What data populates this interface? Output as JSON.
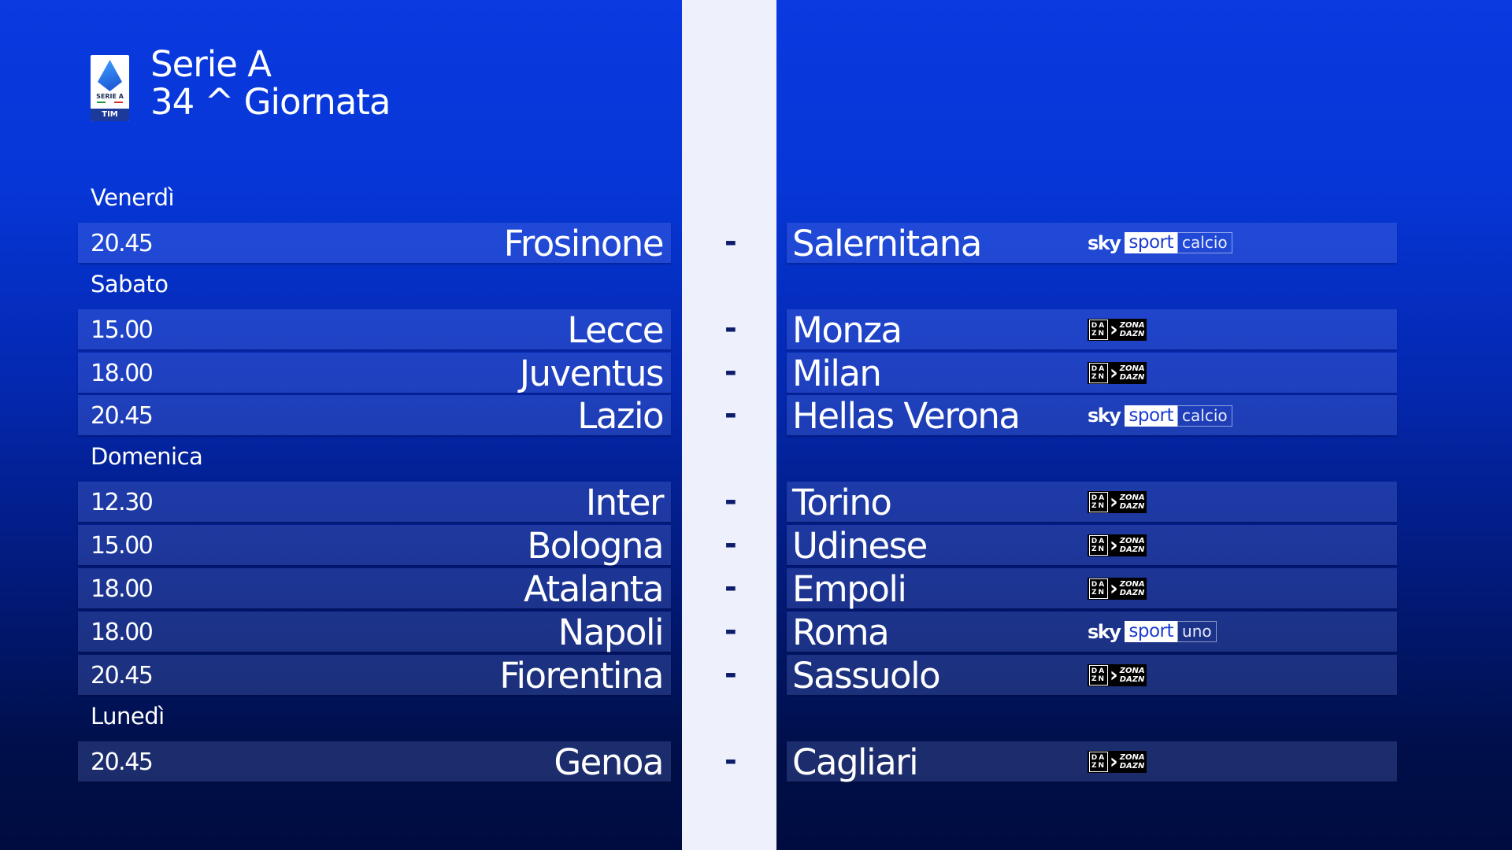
{
  "header": {
    "line1": "Serie A",
    "line2": "34 ^ Giornata",
    "logo_text": "SERIE A",
    "logo_sponsor": "TIM"
  },
  "colors": {
    "background_top": "#0a3ae0",
    "background_bottom": "#000c40",
    "center_strip": "#eef1fb",
    "dash": "#0c1c6a"
  },
  "broadcasters": {
    "sky_calcio": {
      "brand": "sky",
      "sport": "sport",
      "channel": "calcio"
    },
    "sky_uno": {
      "brand": "sky",
      "sport": "sport",
      "channel": "uno"
    },
    "dazn": {
      "box_top": "DA",
      "box_bottom": "ZN",
      "zona1": "ZONA",
      "zona2": "DAZN"
    }
  },
  "schedule": [
    {
      "type": "day",
      "label": "Venerdì"
    },
    {
      "type": "match",
      "time": "20.45",
      "home": "Frosinone",
      "sep": "-",
      "away": "Salernitana",
      "tv": "sky_calcio"
    },
    {
      "type": "day",
      "label": "Sabato"
    },
    {
      "type": "match",
      "time": "15.00",
      "home": "Lecce",
      "sep": "-",
      "away": "Monza",
      "tv": "dazn"
    },
    {
      "type": "match",
      "time": "18.00",
      "home": "Juventus",
      "sep": "-",
      "away": "Milan",
      "tv": "dazn"
    },
    {
      "type": "match",
      "time": "20.45",
      "home": "Lazio",
      "sep": "-",
      "away": "Hellas Verona",
      "tv": "sky_calcio"
    },
    {
      "type": "day",
      "label": "Domenica"
    },
    {
      "type": "match",
      "time": "12.30",
      "home": "Inter",
      "sep": "-",
      "away": "Torino",
      "tv": "dazn"
    },
    {
      "type": "match",
      "time": "15.00",
      "home": "Bologna",
      "sep": "-",
      "away": "Udinese",
      "tv": "dazn"
    },
    {
      "type": "match",
      "time": "18.00",
      "home": "Atalanta",
      "sep": "-",
      "away": "Empoli",
      "tv": "dazn"
    },
    {
      "type": "match",
      "time": "18.00",
      "home": "Napoli",
      "sep": "-",
      "away": "Roma",
      "tv": "sky_uno"
    },
    {
      "type": "match",
      "time": "20.45",
      "home": "Fiorentina",
      "sep": "-",
      "away": "Sassuolo",
      "tv": "dazn"
    },
    {
      "type": "day",
      "label": "Lunedì"
    },
    {
      "type": "match",
      "time": "20.45",
      "home": "Genoa",
      "sep": "-",
      "away": "Cagliari",
      "tv": "dazn"
    }
  ]
}
